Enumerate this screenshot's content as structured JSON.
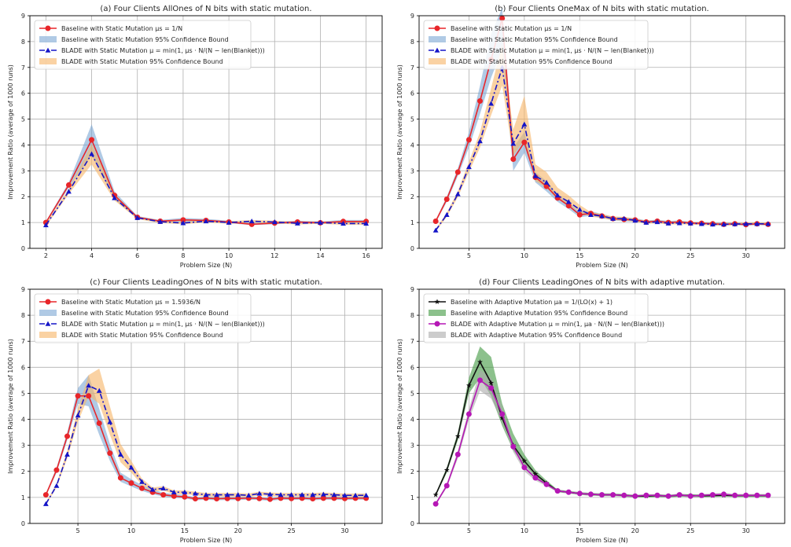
{
  "figure": {
    "ylabel": "Improvement Ratio (average of 1000 runs)",
    "xlabel": "Problem Size (N)"
  },
  "chart_data": [
    {
      "type": "line",
      "title": "(a) Four Clients AllOnes of N bits with static mutation.",
      "xlabel": "Problem Size (N)",
      "ylabel": "Improvement Ratio (average of 1000 runs)",
      "xlim": [
        1.3,
        16.7
      ],
      "ylim": [
        0,
        9
      ],
      "xticks": [
        2,
        4,
        6,
        8,
        10,
        12,
        14,
        16
      ],
      "yticks": [
        0,
        1,
        2,
        3,
        4,
        5,
        6,
        7,
        8,
        9
      ],
      "grid": true,
      "legend_position": "top-left",
      "x": [
        2,
        3,
        4,
        5,
        6,
        7,
        8,
        9,
        10,
        11,
        12,
        13,
        14,
        15,
        16
      ],
      "series": [
        {
          "name": "Baseline with Static Mutation μs = 1/N",
          "color": "#e8262a",
          "marker": "circle",
          "dash": "solid",
          "values": [
            1.0,
            2.45,
            4.2,
            2.05,
            1.2,
            1.05,
            1.1,
            1.08,
            1.02,
            0.93,
            0.98,
            1.02,
            0.99,
            1.04,
            1.04
          ]
        },
        {
          "name": "BLADE with Static Mutation μ = min(1, μs · N/(N − len(Blanket)))",
          "color": "#1515c8",
          "marker": "triangle",
          "dash": "dashdot",
          "values": [
            0.9,
            2.2,
            3.65,
            1.95,
            1.18,
            1.03,
            0.98,
            1.05,
            1.0,
            1.05,
            1.02,
            0.97,
            1.0,
            0.96,
            0.96
          ]
        }
      ],
      "bands": [
        {
          "name": "Baseline with Static Mutation 95% Confidence Bound",
          "color": "#7ba7d4",
          "opacity": 0.6,
          "lower": [
            0.95,
            2.35,
            3.6,
            1.9,
            1.15,
            1.0,
            1.0,
            1.02,
            0.97,
            0.9,
            0.93,
            0.97,
            0.94,
            0.98,
            0.98
          ],
          "upper": [
            1.05,
            2.55,
            4.8,
            2.2,
            1.25,
            1.1,
            1.18,
            1.14,
            1.07,
            0.98,
            1.03,
            1.07,
            1.04,
            1.1,
            1.1
          ]
        },
        {
          "name": "BLADE with Static Mutation 95% Confidence Bound",
          "color": "#f7b466",
          "opacity": 0.6,
          "lower": [
            0.85,
            2.1,
            3.25,
            1.85,
            1.13,
            0.98,
            0.93,
            1.0,
            0.95,
            1.0,
            0.97,
            0.92,
            0.95,
            0.91,
            0.91
          ],
          "upper": [
            0.95,
            2.3,
            4.05,
            2.1,
            1.23,
            1.08,
            1.03,
            1.1,
            1.05,
            1.1,
            1.07,
            1.02,
            1.05,
            1.01,
            1.01
          ]
        }
      ]
    },
    {
      "type": "line",
      "title": "(b) Four Clients OneMax of N bits with static mutation.",
      "xlabel": "Problem Size (N)",
      "ylabel": "Improvement Ratio (average of 1000 runs)",
      "xlim": [
        0.5,
        33.5
      ],
      "ylim": [
        0,
        9
      ],
      "xticks": [
        5,
        10,
        15,
        20,
        25,
        30
      ],
      "yticks": [
        0,
        1,
        2,
        3,
        4,
        5,
        6,
        7,
        8,
        9
      ],
      "grid": true,
      "legend_position": "top-left",
      "x": [
        2,
        3,
        4,
        5,
        6,
        7,
        8,
        9,
        10,
        11,
        12,
        13,
        14,
        15,
        16,
        17,
        18,
        19,
        20,
        21,
        22,
        23,
        24,
        25,
        26,
        27,
        28,
        29,
        30,
        31,
        32
      ],
      "series": [
        {
          "name": "Baseline with Static Mutation μs = 1/N",
          "color": "#e8262a",
          "marker": "circle",
          "dash": "solid",
          "values": [
            1.05,
            1.9,
            2.95,
            4.2,
            5.7,
            7.3,
            8.9,
            3.45,
            4.1,
            2.75,
            2.4,
            1.95,
            1.65,
            1.3,
            1.35,
            1.25,
            1.15,
            1.12,
            1.1,
            1.02,
            1.05,
            1.0,
            1.02,
            0.98,
            0.97,
            0.95,
            0.93,
            0.95,
            0.92,
            0.95,
            0.93
          ]
        },
        {
          "name": "BLADE with Static Mutation μ = min(1, μs · N/(N − len(Blanket)))",
          "color": "#1515c8",
          "marker": "triangle",
          "dash": "dashdot",
          "values": [
            0.7,
            1.3,
            2.1,
            3.15,
            4.15,
            5.6,
            7.0,
            4.05,
            4.8,
            2.8,
            2.55,
            2.05,
            1.8,
            1.5,
            1.3,
            1.25,
            1.15,
            1.15,
            1.08,
            1.0,
            1.02,
            0.97,
            0.98,
            0.97,
            0.95,
            0.93,
            0.93,
            0.94,
            0.95,
            0.95,
            0.95
          ]
        }
      ],
      "bands": [
        {
          "name": "Baseline with Static Mutation 95% Confidence Bound",
          "color": "#7ba7d4",
          "opacity": 0.6,
          "lower": [
            1.0,
            1.8,
            2.8,
            3.9,
            5.2,
            6.6,
            7.7,
            3.0,
            3.7,
            2.55,
            2.2,
            1.8,
            1.52,
            1.2,
            1.26,
            1.17,
            1.08,
            1.05,
            1.03,
            0.96,
            0.99,
            0.94,
            0.96,
            0.93,
            0.92,
            0.9,
            0.88,
            0.9,
            0.87,
            0.9,
            0.88
          ],
          "upper": [
            1.1,
            2.0,
            3.1,
            4.5,
            6.3,
            8.3,
            9.3,
            3.9,
            4.5,
            2.95,
            2.6,
            2.1,
            1.78,
            1.4,
            1.44,
            1.33,
            1.22,
            1.19,
            1.17,
            1.08,
            1.11,
            1.06,
            1.08,
            1.03,
            1.02,
            1.0,
            0.98,
            1.0,
            0.97,
            1.0,
            0.98
          ]
        },
        {
          "name": "BLADE with Static Mutation 95% Confidence Bound",
          "color": "#f7b466",
          "opacity": 0.6,
          "lower": [
            0.65,
            1.22,
            1.98,
            2.95,
            3.9,
            5.15,
            6.3,
            3.6,
            4.2,
            2.6,
            2.35,
            1.9,
            1.68,
            1.4,
            1.22,
            1.18,
            1.08,
            1.09,
            1.02,
            0.95,
            0.97,
            0.92,
            0.93,
            0.92,
            0.9,
            0.88,
            0.88,
            0.89,
            0.9,
            0.9,
            0.9
          ],
          "upper": [
            0.75,
            1.38,
            2.22,
            3.35,
            4.5,
            6.2,
            7.9,
            4.6,
            5.9,
            3.25,
            2.95,
            2.35,
            2.05,
            1.68,
            1.4,
            1.33,
            1.23,
            1.22,
            1.15,
            1.06,
            1.08,
            1.03,
            1.04,
            1.03,
            1.0,
            0.98,
            0.98,
            0.99,
            1.0,
            1.0,
            1.0
          ]
        }
      ]
    },
    {
      "type": "line",
      "title": "(c) Four Clients LeadingOnes of N bits with static mutation.",
      "xlabel": "Problem Size (N)",
      "ylabel": "Improvement Ratio (average of 1000 runs)",
      "xlim": [
        0.5,
        33.5
      ],
      "ylim": [
        0,
        9
      ],
      "xticks": [
        5,
        10,
        15,
        20,
        25,
        30
      ],
      "yticks": [
        0,
        1,
        2,
        3,
        4,
        5,
        6,
        7,
        8,
        9
      ],
      "grid": true,
      "legend_position": "top-left",
      "x": [
        2,
        3,
        4,
        5,
        6,
        7,
        8,
        9,
        10,
        11,
        12,
        13,
        14,
        15,
        16,
        17,
        18,
        19,
        20,
        21,
        22,
        23,
        24,
        25,
        26,
        27,
        28,
        29,
        30,
        31,
        32
      ],
      "series": [
        {
          "name": "Baseline with Static Mutation μs = 1.5936/N",
          "color": "#e8262a",
          "marker": "circle",
          "dash": "solid",
          "values": [
            1.1,
            2.05,
            3.35,
            4.9,
            4.9,
            3.85,
            2.7,
            1.75,
            1.55,
            1.35,
            1.2,
            1.1,
            1.05,
            1.02,
            0.95,
            0.97,
            0.95,
            0.96,
            0.96,
            0.97,
            0.96,
            0.93,
            0.97,
            0.96,
            0.97,
            0.95,
            0.97,
            0.97,
            0.96,
            0.97,
            0.97
          ]
        },
        {
          "name": "BLADE with Static Mutation μ = min(1, μs · N/(N − len(Blanket)))",
          "color": "#1515c8",
          "marker": "triangle",
          "dash": "dashdot",
          "values": [
            0.75,
            1.45,
            2.65,
            4.15,
            5.3,
            5.1,
            3.9,
            2.65,
            2.15,
            1.6,
            1.3,
            1.35,
            1.2,
            1.2,
            1.15,
            1.1,
            1.1,
            1.1,
            1.1,
            1.08,
            1.15,
            1.12,
            1.1,
            1.1,
            1.1,
            1.1,
            1.12,
            1.1,
            1.08,
            1.08,
            1.08
          ]
        }
      ],
      "bands": [
        {
          "name": "Baseline with Static Mutation 95% Confidence Bound",
          "color": "#7ba7d4",
          "opacity": 0.6,
          "lower": [
            1.05,
            1.95,
            3.2,
            4.6,
            4.5,
            3.4,
            2.4,
            1.6,
            1.42,
            1.25,
            1.12,
            1.03,
            0.98,
            0.96,
            0.89,
            0.91,
            0.89,
            0.9,
            0.9,
            0.91,
            0.9,
            0.87,
            0.91,
            0.9,
            0.91,
            0.89,
            0.91,
            0.91,
            0.9,
            0.91,
            0.91
          ],
          "upper": [
            1.15,
            2.15,
            3.5,
            5.2,
            5.7,
            4.4,
            3.05,
            1.95,
            1.7,
            1.47,
            1.3,
            1.18,
            1.13,
            1.09,
            1.01,
            1.03,
            1.01,
            1.02,
            1.02,
            1.03,
            1.02,
            0.99,
            1.03,
            1.02,
            1.03,
            1.01,
            1.03,
            1.03,
            1.02,
            1.03,
            1.03
          ]
        },
        {
          "name": "BLADE with Static Mutation 95% Confidence Bound",
          "color": "#f7b466",
          "opacity": 0.6,
          "lower": [
            0.7,
            1.38,
            2.5,
            3.9,
            4.9,
            4.6,
            3.4,
            2.35,
            1.95,
            1.48,
            1.22,
            1.27,
            1.13,
            1.13,
            1.08,
            1.03,
            1.03,
            1.03,
            1.03,
            1.01,
            1.08,
            1.05,
            1.03,
            1.03,
            1.03,
            1.03,
            1.05,
            1.03,
            1.01,
            1.01,
            1.01
          ],
          "upper": [
            0.8,
            1.52,
            2.8,
            4.4,
            5.7,
            5.95,
            4.5,
            3.05,
            2.4,
            1.72,
            1.38,
            1.43,
            1.27,
            1.27,
            1.22,
            1.17,
            1.17,
            1.17,
            1.17,
            1.15,
            1.22,
            1.19,
            1.17,
            1.17,
            1.17,
            1.17,
            1.19,
            1.17,
            1.15,
            1.15,
            1.15
          ]
        }
      ]
    },
    {
      "type": "line",
      "title": "(d) Four Clients LeadingOnes of N bits with adaptive mutation.",
      "xlabel": "Problem Size (N)",
      "ylabel": "Improvement Ratio (average of 1000 runs)",
      "xlim": [
        0.5,
        33.5
      ],
      "ylim": [
        0,
        9
      ],
      "xticks": [
        5,
        10,
        15,
        20,
        25,
        30
      ],
      "yticks": [
        0,
        1,
        2,
        3,
        4,
        5,
        6,
        7,
        8,
        9
      ],
      "grid": true,
      "legend_position": "top-left",
      "x": [
        2,
        3,
        4,
        5,
        6,
        7,
        8,
        9,
        10,
        11,
        12,
        13,
        14,
        15,
        16,
        17,
        18,
        19,
        20,
        21,
        22,
        23,
        24,
        25,
        26,
        27,
        28,
        29,
        30,
        31,
        32
      ],
      "series": [
        {
          "name": "Baseline with Adaptive Mutation μa = 1/(LO(x) + 1)",
          "color": "#111111",
          "marker": "star",
          "dash": "solid",
          "values": [
            1.1,
            2.05,
            3.35,
            5.3,
            6.2,
            5.4,
            4.05,
            3.0,
            2.4,
            1.9,
            1.55,
            1.25,
            1.2,
            1.15,
            1.12,
            1.1,
            1.1,
            1.08,
            1.05,
            1.05,
            1.07,
            1.05,
            1.08,
            1.07,
            1.06,
            1.07,
            1.08,
            1.07,
            1.07,
            1.07,
            1.07
          ]
        },
        {
          "name": "BLADE with Adaptive Mutation μ = min(1, μa · N/(N − len(Blanket)))",
          "color": "#b517b5",
          "marker": "circle",
          "dash": "solid",
          "values": [
            0.75,
            1.45,
            2.65,
            4.2,
            5.5,
            5.2,
            4.2,
            2.95,
            2.15,
            1.75,
            1.5,
            1.25,
            1.2,
            1.15,
            1.12,
            1.1,
            1.1,
            1.08,
            1.05,
            1.08,
            1.08,
            1.05,
            1.1,
            1.05,
            1.08,
            1.1,
            1.12,
            1.08,
            1.08,
            1.08,
            1.08
          ]
        }
      ],
      "bands": [
        {
          "name": "Baseline with Adaptive Mutation 95% Confidence Bound",
          "color": "#4e9f4e",
          "opacity": 0.65,
          "lower": [
            1.05,
            1.95,
            3.2,
            5.0,
            5.6,
            4.9,
            3.75,
            2.8,
            2.25,
            1.8,
            1.48,
            1.2,
            1.15,
            1.1,
            1.07,
            1.05,
            1.05,
            1.03,
            1.0,
            1.0,
            1.02,
            1.0,
            1.03,
            1.02,
            1.01,
            1.02,
            1.03,
            1.02,
            1.02,
            1.02,
            1.02
          ],
          "upper": [
            1.15,
            2.15,
            3.5,
            5.6,
            6.8,
            6.4,
            4.6,
            3.45,
            2.65,
            2.05,
            1.65,
            1.3,
            1.25,
            1.2,
            1.17,
            1.15,
            1.15,
            1.13,
            1.1,
            1.1,
            1.12,
            1.1,
            1.13,
            1.12,
            1.11,
            1.12,
            1.13,
            1.12,
            1.12,
            1.12,
            1.12
          ]
        },
        {
          "name": "BLADE with Adaptive Mutation 95% Confidence Bound",
          "color": "#aaaaaa",
          "opacity": 0.6,
          "lower": [
            0.7,
            1.38,
            2.5,
            4.0,
            5.1,
            4.8,
            3.9,
            2.75,
            2.0,
            1.65,
            1.43,
            1.2,
            1.15,
            1.1,
            1.07,
            1.05,
            1.05,
            1.03,
            1.0,
            1.03,
            1.03,
            1.0,
            1.05,
            1.0,
            1.03,
            1.05,
            1.07,
            1.03,
            1.03,
            1.03,
            1.03
          ],
          "upper": [
            0.8,
            1.52,
            2.8,
            4.4,
            5.9,
            5.6,
            4.5,
            3.15,
            2.3,
            1.85,
            1.57,
            1.3,
            1.25,
            1.2,
            1.17,
            1.15,
            1.15,
            1.13,
            1.1,
            1.13,
            1.13,
            1.1,
            1.15,
            1.1,
            1.13,
            1.15,
            1.17,
            1.13,
            1.13,
            1.13,
            1.13
          ]
        }
      ]
    }
  ]
}
